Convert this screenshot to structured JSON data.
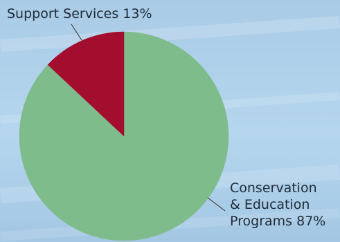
{
  "chart_data": {
    "type": "pie",
    "slices": [
      {
        "name": "Support Services",
        "value": 13,
        "label": "Support Services 13%",
        "color": "#a30d2e"
      },
      {
        "name": "Conservation & Education Programs",
        "value": 87,
        "label_lines": [
          "Conservation",
          "& Education",
          "Programs 87%"
        ],
        "color": "#7fbc8c"
      }
    ],
    "legend": "none",
    "grid": false,
    "background_color": "#aecfe9"
  }
}
